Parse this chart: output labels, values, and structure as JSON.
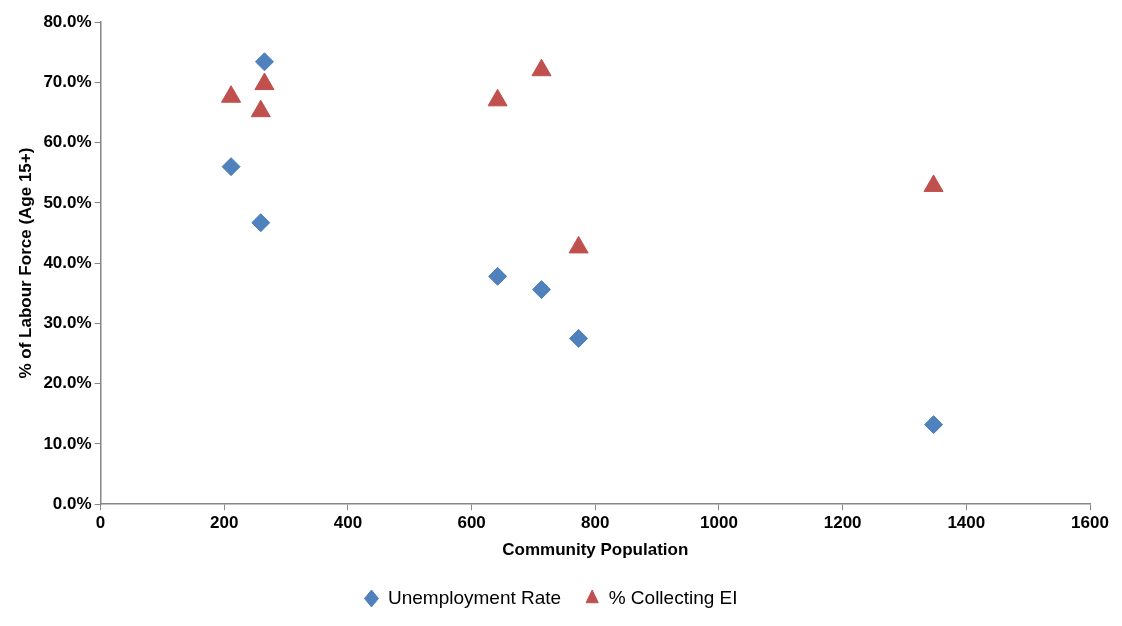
{
  "chart_data": {
    "type": "scatter",
    "xlabel": "Community Population",
    "ylabel": "% of Labour Force (Age 15+)",
    "series": [
      {
        "name": "Unemployment Rate",
        "color": "#4f81bd",
        "marker": "diamond",
        "x": [
          265,
          211,
          259,
          642,
          713,
          773,
          1347
        ],
        "values": [
          73.4,
          56.0,
          46.7,
          37.8,
          35.6,
          27.5,
          13.2
        ]
      },
      {
        "name": "% Collecting EI",
        "color": "#c0504d",
        "marker": "triangle",
        "x": [
          211,
          265,
          259,
          642,
          713,
          773,
          1347
        ],
        "values": [
          67.6,
          69.7,
          65.2,
          67.0,
          72.0,
          42.6,
          52.8
        ]
      }
    ],
    "xlim": [
      0,
      1600
    ],
    "xticks": [
      0,
      200,
      400,
      600,
      800,
      1000,
      1200,
      1400,
      1600
    ],
    "ylim": [
      0,
      80
    ],
    "yticks": [
      {
        "value": 0,
        "label": "0.0%"
      },
      {
        "value": 10,
        "label": "10.0%"
      },
      {
        "value": 20,
        "label": "20.0%"
      },
      {
        "value": 30,
        "label": "30.0%"
      },
      {
        "value": 40,
        "label": "40.0%"
      },
      {
        "value": 50,
        "label": "50.0%"
      },
      {
        "value": 60,
        "label": "60.0%"
      },
      {
        "value": 70,
        "label": "70.0%"
      },
      {
        "value": 80,
        "label": "80.0%"
      }
    ],
    "grid": false,
    "legend": "bottom"
  }
}
